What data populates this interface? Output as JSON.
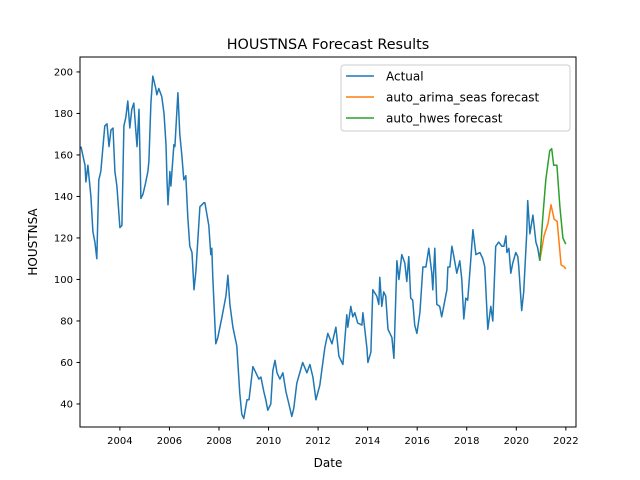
{
  "chart_data": {
    "type": "line",
    "title": "HOUSTNSA Forecast Results",
    "xlabel": "Date",
    "ylabel": "HOUSTNSA",
    "xlim": [
      2002.39,
      2022.41
    ],
    "ylim": [
      28.9,
      207.2
    ],
    "xticks": [
      2004,
      2006,
      2008,
      2010,
      2012,
      2014,
      2016,
      2018,
      2020,
      2022
    ],
    "xtick_labels": [
      "2004",
      "2006",
      "2008",
      "2010",
      "2012",
      "2014",
      "2016",
      "2018",
      "2020",
      "2022"
    ],
    "yticks": [
      40,
      60,
      80,
      100,
      120,
      140,
      160,
      180,
      200
    ],
    "ytick_labels": [
      "40",
      "60",
      "80",
      "100",
      "120",
      "140",
      "160",
      "180",
      "200"
    ],
    "grid": false,
    "legend_position": "top-right",
    "series": [
      {
        "name": "Actual",
        "color": "#1f77b4",
        "points": [
          [
            2002.43,
            164
          ],
          [
            2002.59,
            155
          ],
          [
            2002.63,
            147
          ],
          [
            2002.71,
            155
          ],
          [
            2002.83,
            140
          ],
          [
            2002.91,
            123
          ],
          [
            2002.99,
            118
          ],
          [
            2003.07,
            110
          ],
          [
            2003.15,
            148
          ],
          [
            2003.23,
            152
          ],
          [
            2003.39,
            174
          ],
          [
            2003.48,
            175
          ],
          [
            2003.56,
            164
          ],
          [
            2003.64,
            172
          ],
          [
            2003.72,
            173
          ],
          [
            2003.8,
            152
          ],
          [
            2003.88,
            145
          ],
          [
            2004.0,
            125
          ],
          [
            2004.08,
            126
          ],
          [
            2004.16,
            174
          ],
          [
            2004.24,
            178
          ],
          [
            2004.32,
            186
          ],
          [
            2004.4,
            173
          ],
          [
            2004.48,
            182
          ],
          [
            2004.56,
            185
          ],
          [
            2004.69,
            164
          ],
          [
            2004.77,
            182
          ],
          [
            2004.85,
            139
          ],
          [
            2004.93,
            141
          ],
          [
            2005.01,
            145
          ],
          [
            2005.13,
            152
          ],
          [
            2005.17,
            157
          ],
          [
            2005.25,
            185
          ],
          [
            2005.33,
            198
          ],
          [
            2005.45,
            192
          ],
          [
            2005.49,
            189
          ],
          [
            2005.57,
            192
          ],
          [
            2005.69,
            188
          ],
          [
            2005.78,
            180
          ],
          [
            2005.86,
            165
          ],
          [
            2005.9,
            148
          ],
          [
            2005.94,
            136
          ],
          [
            2006.02,
            152
          ],
          [
            2006.06,
            145
          ],
          [
            2006.18,
            165
          ],
          [
            2006.22,
            164
          ],
          [
            2006.34,
            190
          ],
          [
            2006.42,
            170
          ],
          [
            2006.5,
            160
          ],
          [
            2006.58,
            148
          ],
          [
            2006.66,
            150
          ],
          [
            2006.74,
            130
          ],
          [
            2006.82,
            116
          ],
          [
            2006.91,
            113
          ],
          [
            2006.99,
            95
          ],
          [
            2007.07,
            104
          ],
          [
            2007.23,
            135
          ],
          [
            2007.39,
            137
          ],
          [
            2007.43,
            137
          ],
          [
            2007.59,
            126
          ],
          [
            2007.67,
            112
          ],
          [
            2007.71,
            115
          ],
          [
            2007.75,
            101
          ],
          [
            2007.87,
            69
          ],
          [
            2007.95,
            72
          ],
          [
            2008.12,
            82
          ],
          [
            2008.28,
            92
          ],
          [
            2008.36,
            102
          ],
          [
            2008.44,
            88
          ],
          [
            2008.56,
            77
          ],
          [
            2008.72,
            68
          ],
          [
            2008.84,
            45
          ],
          [
            2008.92,
            35
          ],
          [
            2009.0,
            33
          ],
          [
            2009.13,
            42
          ],
          [
            2009.21,
            42
          ],
          [
            2009.37,
            58
          ],
          [
            2009.49,
            55
          ],
          [
            2009.61,
            52
          ],
          [
            2009.69,
            53
          ],
          [
            2009.81,
            46
          ],
          [
            2009.89,
            42
          ],
          [
            2009.97,
            37
          ],
          [
            2010.09,
            40
          ],
          [
            2010.17,
            56
          ],
          [
            2010.26,
            61
          ],
          [
            2010.34,
            55
          ],
          [
            2010.46,
            52
          ],
          [
            2010.58,
            55
          ],
          [
            2010.7,
            46
          ],
          [
            2010.82,
            40
          ],
          [
            2010.94,
            34
          ],
          [
            2011.02,
            38
          ],
          [
            2011.14,
            50
          ],
          [
            2011.38,
            60
          ],
          [
            2011.55,
            55
          ],
          [
            2011.67,
            59
          ],
          [
            2011.79,
            53
          ],
          [
            2011.91,
            42
          ],
          [
            2012.07,
            49
          ],
          [
            2012.27,
            67
          ],
          [
            2012.39,
            74
          ],
          [
            2012.56,
            69
          ],
          [
            2012.72,
            77
          ],
          [
            2012.84,
            63
          ],
          [
            2013.0,
            59
          ],
          [
            2013.16,
            83
          ],
          [
            2013.2,
            77
          ],
          [
            2013.32,
            87
          ],
          [
            2013.4,
            82
          ],
          [
            2013.48,
            84
          ],
          [
            2013.6,
            79
          ],
          [
            2013.77,
            78
          ],
          [
            2013.81,
            84
          ],
          [
            2013.97,
            67
          ],
          [
            2014.01,
            60
          ],
          [
            2014.13,
            65
          ],
          [
            2014.21,
            95
          ],
          [
            2014.37,
            92
          ],
          [
            2014.45,
            88
          ],
          [
            2014.49,
            101
          ],
          [
            2014.57,
            87
          ],
          [
            2014.65,
            94
          ],
          [
            2014.73,
            92
          ],
          [
            2014.82,
            76
          ],
          [
            2014.98,
            72
          ],
          [
            2015.06,
            62
          ],
          [
            2015.18,
            109
          ],
          [
            2015.26,
            100
          ],
          [
            2015.38,
            112
          ],
          [
            2015.5,
            108
          ],
          [
            2015.58,
            99
          ],
          [
            2015.66,
            111
          ],
          [
            2015.74,
            91
          ],
          [
            2015.82,
            90
          ],
          [
            2015.9,
            78
          ],
          [
            2015.99,
            74
          ],
          [
            2016.11,
            84
          ],
          [
            2016.23,
            106
          ],
          [
            2016.35,
            106
          ],
          [
            2016.47,
            115
          ],
          [
            2016.59,
            103
          ],
          [
            2016.63,
            95
          ],
          [
            2016.71,
            115
          ],
          [
            2016.79,
            88
          ],
          [
            2016.91,
            87
          ],
          [
            2016.99,
            82
          ],
          [
            2017.2,
            95
          ],
          [
            2017.24,
            106
          ],
          [
            2017.32,
            106
          ],
          [
            2017.4,
            116
          ],
          [
            2017.48,
            111
          ],
          [
            2017.6,
            103
          ],
          [
            2017.72,
            109
          ],
          [
            2017.8,
            100
          ],
          [
            2017.88,
            81
          ],
          [
            2017.96,
            91
          ],
          [
            2018.04,
            90
          ],
          [
            2018.16,
            109
          ],
          [
            2018.25,
            124
          ],
          [
            2018.37,
            112
          ],
          [
            2018.53,
            113
          ],
          [
            2018.65,
            110
          ],
          [
            2018.73,
            106
          ],
          [
            2018.85,
            76
          ],
          [
            2018.97,
            87
          ],
          [
            2019.05,
            80
          ],
          [
            2019.17,
            116
          ],
          [
            2019.29,
            118
          ],
          [
            2019.42,
            116
          ],
          [
            2019.5,
            116
          ],
          [
            2019.58,
            121
          ],
          [
            2019.62,
            113
          ],
          [
            2019.7,
            115
          ],
          [
            2019.78,
            103
          ],
          [
            2019.86,
            108
          ],
          [
            2019.98,
            113
          ],
          [
            2020.06,
            111
          ],
          [
            2020.1,
            106
          ],
          [
            2020.22,
            85
          ],
          [
            2020.3,
            94
          ],
          [
            2020.42,
            122
          ],
          [
            2020.46,
            138
          ],
          [
            2020.55,
            122
          ],
          [
            2020.67,
            131
          ],
          [
            2020.79,
            118
          ],
          [
            2020.87,
            115
          ],
          [
            2020.95,
            109
          ]
        ]
      },
      {
        "name": "auto_arima_seas forecast",
        "color": "#ff7f0e",
        "points": [
          [
            2020.95,
            109
          ],
          [
            2021.12,
            121
          ],
          [
            2021.28,
            127
          ],
          [
            2021.4,
            136
          ],
          [
            2021.53,
            129
          ],
          [
            2021.65,
            128
          ],
          [
            2021.81,
            107
          ],
          [
            2021.94,
            106
          ],
          [
            2022.0,
            105
          ]
        ]
      },
      {
        "name": "auto_hwes forecast",
        "color": "#2ca02c",
        "points": [
          [
            2020.95,
            109
          ],
          [
            2021.07,
            130
          ],
          [
            2021.19,
            148
          ],
          [
            2021.35,
            162
          ],
          [
            2021.43,
            163
          ],
          [
            2021.51,
            155
          ],
          [
            2021.64,
            155
          ],
          [
            2021.76,
            135
          ],
          [
            2021.88,
            120
          ],
          [
            2022.0,
            117
          ]
        ]
      }
    ]
  }
}
